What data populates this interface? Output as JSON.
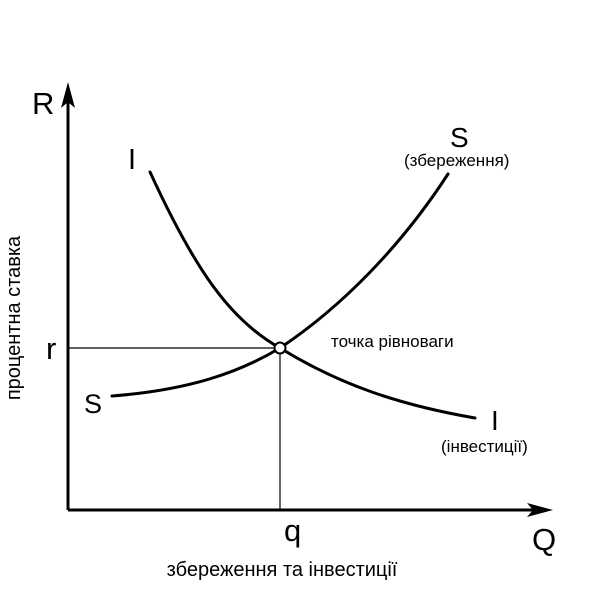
{
  "axes": {
    "y_letter": "R",
    "x_letter": "Q",
    "y_title": "процентна ставка",
    "x_title": "збереження та інвестиції",
    "r_tick": "r",
    "q_tick": "q"
  },
  "curves": {
    "savings_letter_top": "S",
    "savings_caption": "(збереження)",
    "savings_letter_bottom": "S",
    "investment_letter_top": "I",
    "investment_letter_bottom": "I",
    "investment_caption": "(інвестиції)"
  },
  "equilibrium_label": "точка рівноваги"
}
